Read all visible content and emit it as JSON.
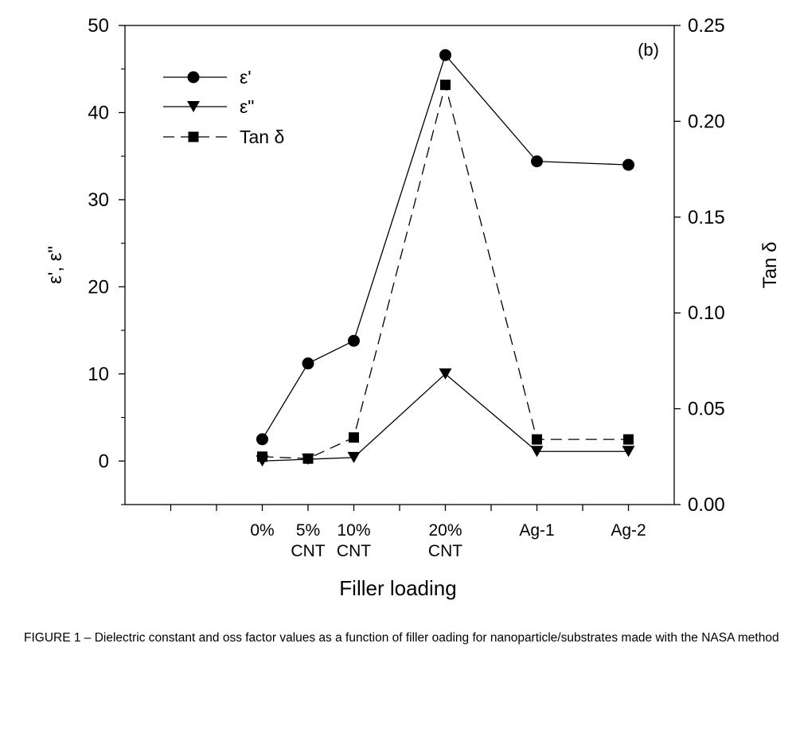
{
  "chart_data": {
    "type": "line",
    "panel_label": "(b)",
    "xlabel": "Filler loading",
    "ylabel": "ε', ε\"",
    "y2label": "Tan δ",
    "categories": [
      {
        "line1": "0%",
        "line2": ""
      },
      {
        "line1": "5%",
        "line2": "CNT"
      },
      {
        "line1": "10%",
        "line2": "CNT"
      },
      {
        "line1": "20%",
        "line2": "CNT"
      },
      {
        "line1": "Ag-1",
        "line2": ""
      },
      {
        "line1": "Ag-2",
        "line2": ""
      }
    ],
    "x_positions": [
      1,
      2,
      3,
      5,
      7,
      9
    ],
    "xlim": [
      -2,
      10
    ],
    "ylim": [
      -5,
      50
    ],
    "y_ticks": [
      0,
      10,
      20,
      30,
      40,
      50
    ],
    "y2lim": [
      0,
      0.25
    ],
    "y2_ticks": [
      "0.00",
      "0.05",
      "0.10",
      "0.15",
      "0.20",
      "0.25"
    ],
    "series": [
      {
        "name": "ε'",
        "axis": "left",
        "marker": "circle",
        "dash": "solid",
        "values": [
          2.5,
          11.2,
          13.8,
          46.6,
          34.4,
          34.0
        ]
      },
      {
        "name": "ε\"",
        "axis": "left",
        "marker": "triangle-down",
        "dash": "solid",
        "values": [
          0.0,
          0.2,
          0.4,
          10.0,
          1.1,
          1.1
        ]
      },
      {
        "name": "Tan δ",
        "axis": "right",
        "marker": "square",
        "dash": "dashed",
        "values": [
          0.025,
          0.024,
          0.035,
          0.219,
          0.034,
          0.034
        ]
      }
    ]
  },
  "caption": "FIGURE 1 – Dielectric constant and oss factor values as a function of filler oading for nanoparticle/substrates made with the NASA method"
}
